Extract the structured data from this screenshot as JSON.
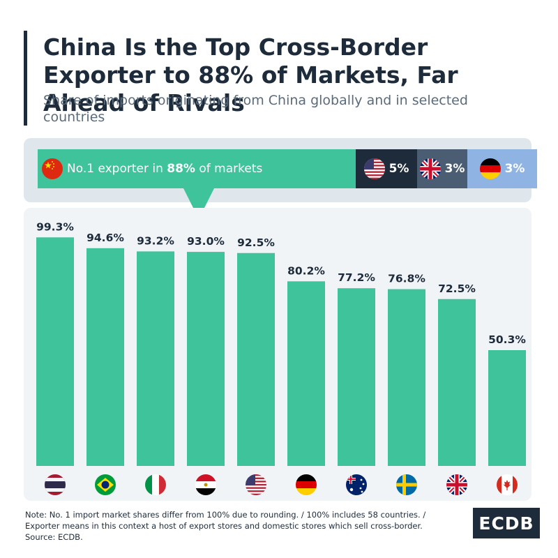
{
  "header": {
    "title": "China Is the Top Cross-Border Exporter to 88% of Markets, Far Ahead of Rivals",
    "subtitle": "Share of imports originating from China globally and in selected countries"
  },
  "share_bar": {
    "segments": [
      {
        "flag": "china-flag-icon",
        "text_before": "No.1 exporter in ",
        "text_bold": "88%",
        "text_after": " of markets",
        "share": 88,
        "color": "#3ec39a"
      },
      {
        "flag": "usa-flag-icon",
        "label": "5%",
        "share": 5,
        "color": "#1d2b3a"
      },
      {
        "flag": "uk-flag-icon",
        "label": "3%",
        "share": 3,
        "color": "#4b5d73"
      },
      {
        "flag": "germany-flag-icon",
        "label": "3%",
        "share": 3,
        "color": "#8fb4e3"
      }
    ]
  },
  "chart_data": {
    "type": "bar",
    "categories": [
      "Thailand",
      "Brazil",
      "Italy",
      "Egypt",
      "United States",
      "Germany",
      "Australia",
      "Sweden",
      "United Kingdom",
      "Canada"
    ],
    "category_icons": [
      "thailand-flag-icon",
      "brazil-flag-icon",
      "italy-flag-icon",
      "egypt-flag-icon",
      "usa-flag-icon",
      "germany-flag-icon",
      "australia-flag-icon",
      "sweden-flag-icon",
      "uk-flag-icon",
      "canada-flag-icon"
    ],
    "values": [
      99.3,
      94.6,
      93.2,
      93.0,
      92.5,
      80.2,
      77.2,
      76.8,
      72.5,
      50.3
    ],
    "value_labels": [
      "99.3%",
      "94.6%",
      "93.2%",
      "93.0%",
      "92.5%",
      "80.2%",
      "77.2%",
      "76.8%",
      "72.5%",
      "50.3%"
    ],
    "ylim": [
      0,
      100
    ],
    "bar_color": "#3ec39a",
    "grid": false,
    "legend": "none"
  },
  "footer": {
    "note_lines": [
      "Note: No. 1 import market shares differ from 100% due to rounding. / 100% includes 58 countries. /",
      "Exporter means in this context a host of export stores and domestic stores which sell cross-border.",
      "Source: ECDB."
    ],
    "logo": "ECDB"
  },
  "colors": {
    "accent": "#3ec39a",
    "dark": "#1d2b3a"
  }
}
